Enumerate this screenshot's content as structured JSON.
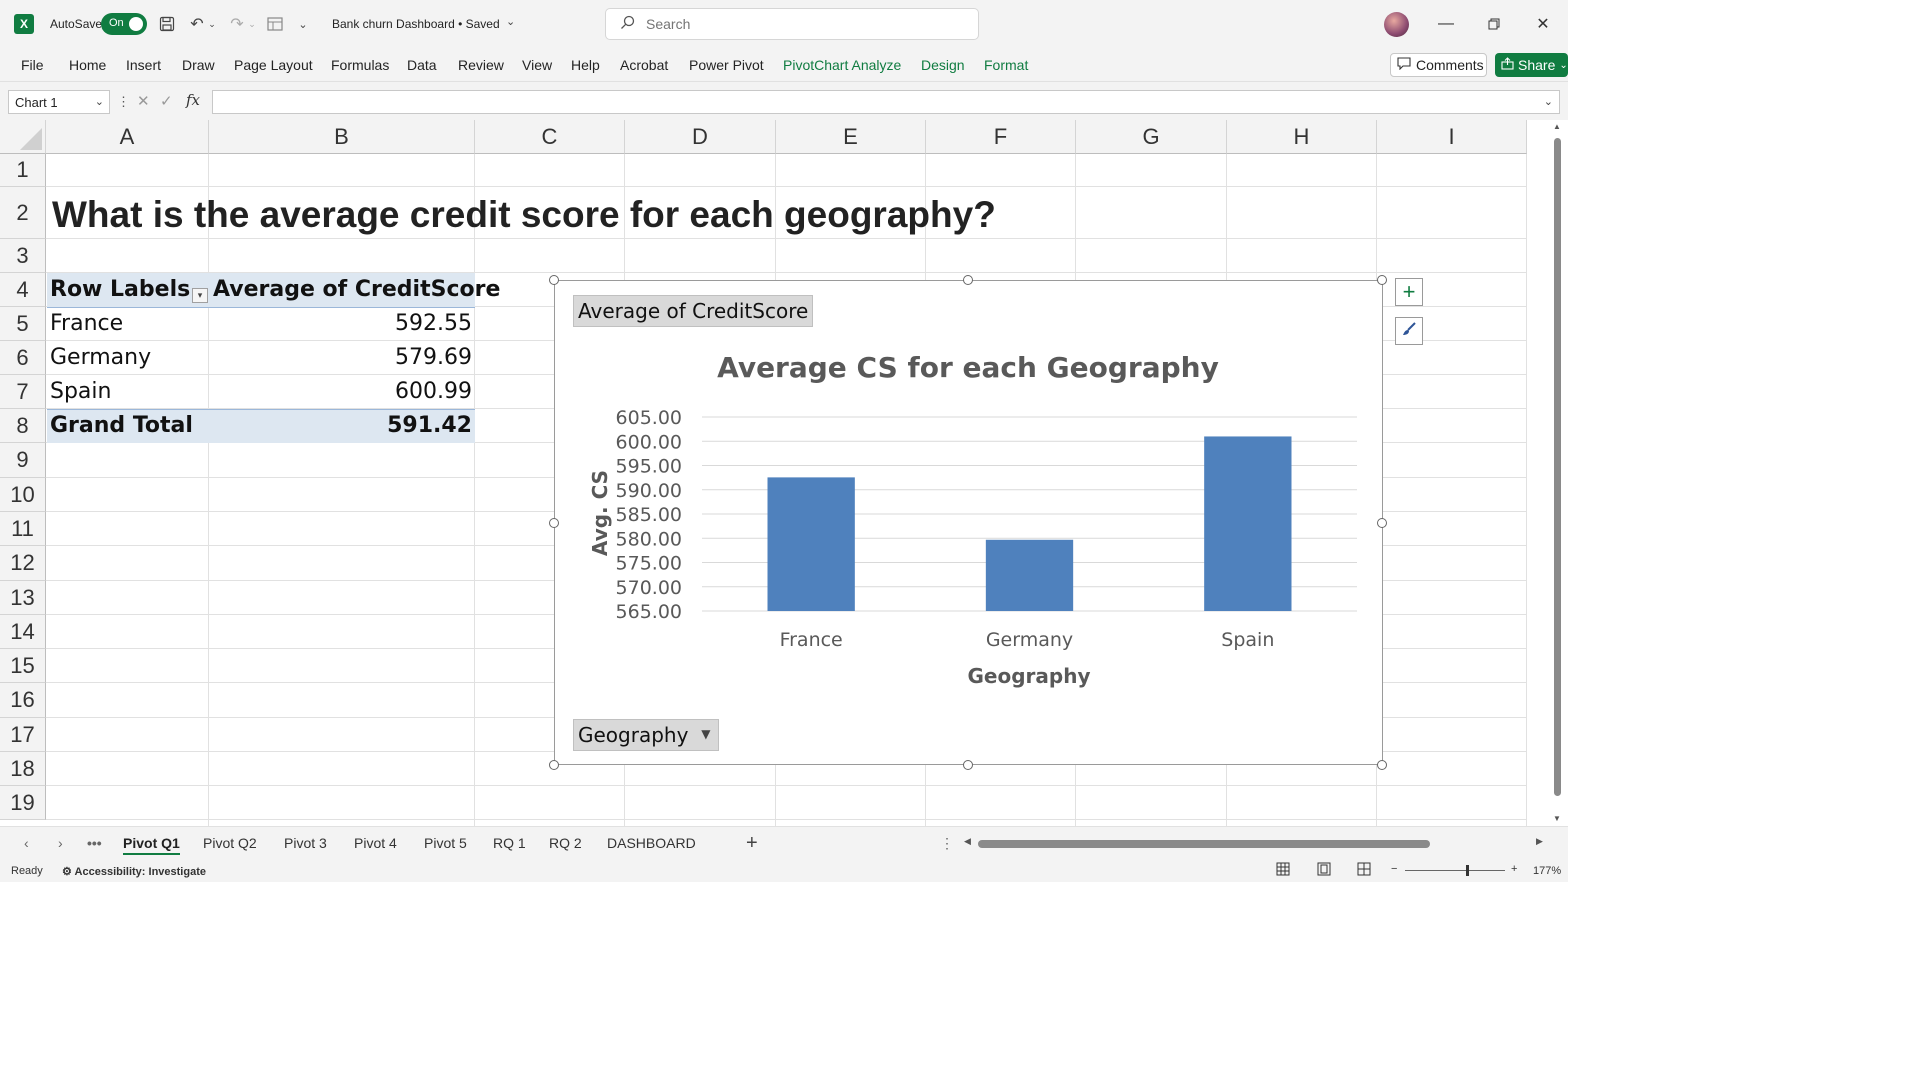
{
  "titlebar": {
    "autosave_label": "AutoSave",
    "autosave_state": "On",
    "doc_title": "Bank churn Dashboard • Saved",
    "search_placeholder": "Search"
  },
  "ribbon": {
    "tabs": [
      "File",
      "Home",
      "Insert",
      "Draw",
      "Page Layout",
      "Formulas",
      "Data",
      "Review",
      "View",
      "Help",
      "Acrobat",
      "Power Pivot"
    ],
    "context_tabs": [
      "PivotChart Analyze",
      "Design",
      "Format"
    ],
    "comments_label": "Comments",
    "share_label": "Share"
  },
  "formula_bar": {
    "name_box": "Chart 1",
    "fx_label": "fx",
    "formula": ""
  },
  "columns": [
    "A",
    "B",
    "C",
    "D",
    "E",
    "F",
    "G",
    "H",
    "I"
  ],
  "rows": [
    "1",
    "2",
    "3",
    "4",
    "5",
    "6",
    "7",
    "8",
    "9",
    "10",
    "11",
    "12",
    "13",
    "14",
    "15",
    "16",
    "17",
    "18",
    "19"
  ],
  "sheet": {
    "title": "What is the average credit score for each geography?"
  },
  "pivot": {
    "header_label": "Row Labels",
    "header_value": "Average of CreditScore",
    "rows": [
      {
        "label": "France",
        "value": "592.55"
      },
      {
        "label": "Germany",
        "value": "579.69"
      },
      {
        "label": "Spain",
        "value": "600.99"
      }
    ],
    "total_label": "Grand Total",
    "total_value": "591.42"
  },
  "chart": {
    "value_field_button": "Average of CreditScore",
    "axis_field_button": "Geography"
  },
  "chart_data": {
    "type": "bar",
    "title": "Average CS for each Geography",
    "xlabel": "Geography",
    "ylabel": "Avg. CS",
    "categories": [
      "France",
      "Germany",
      "Spain"
    ],
    "values": [
      592.55,
      579.69,
      600.99
    ],
    "ylim": [
      565,
      605
    ],
    "yticks": [
      "605.00",
      "600.00",
      "595.00",
      "590.00",
      "585.00",
      "580.00",
      "575.00",
      "570.00",
      "565.00"
    ],
    "grid": true,
    "legend": "none",
    "bar_color": "#4f81bd"
  },
  "sheet_tabs": [
    "Pivot Q1",
    "Pivot Q2",
    "Pivot 3",
    "Pivot 4",
    "Pivot 5",
    "RQ 1",
    "RQ 2",
    "DASHBOARD"
  ],
  "active_sheet": "Pivot Q1",
  "status": {
    "ready": "Ready",
    "accessibility": "Accessibility: Investigate",
    "zoom": "177%"
  },
  "colors": {
    "accent": "#107c41",
    "pivot_band": "#dde7f1"
  }
}
